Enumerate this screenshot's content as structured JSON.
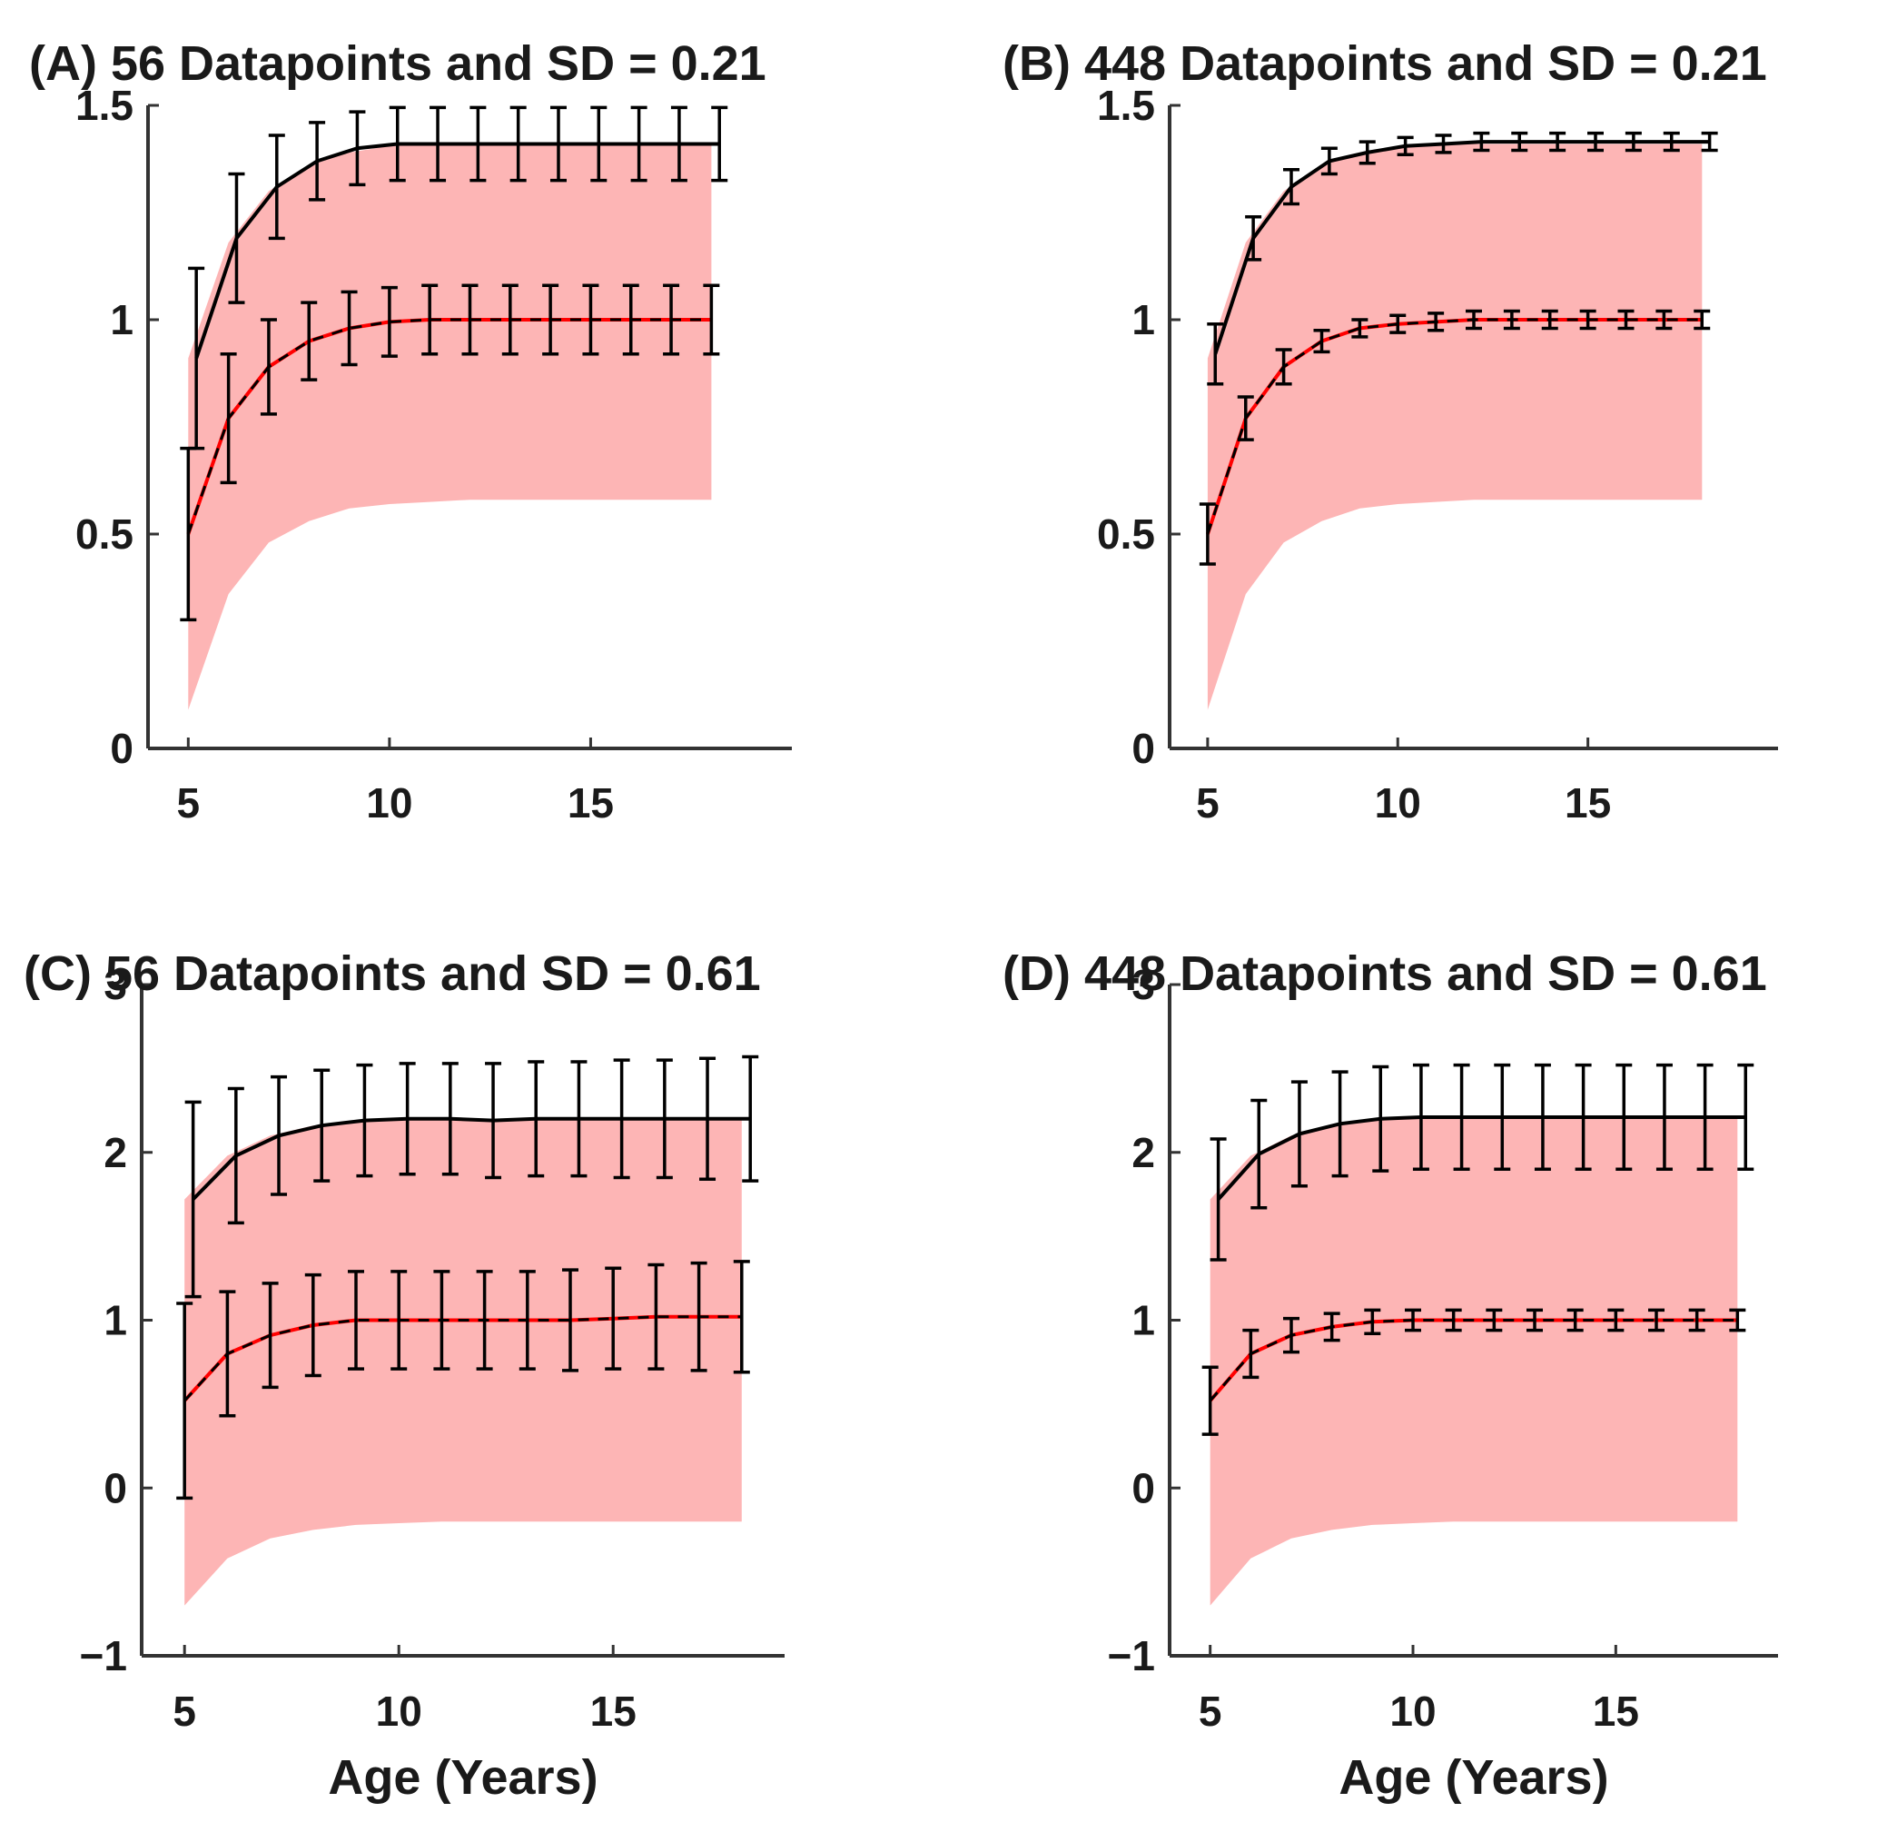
{
  "colors": {
    "band": "#fdb5b5",
    "mean_line": "#ff0000",
    "fit_line": "#000000",
    "axis": "#333333"
  },
  "chart_data": [
    {
      "id": "A",
      "type": "line",
      "title": "(A) 56 Datapoints and SD = 0.21",
      "xlabel": "",
      "ylabel": "",
      "xlim": [
        4,
        20
      ],
      "ylim": [
        0,
        1.5
      ],
      "xticks": [
        5,
        10,
        15
      ],
      "xtick_labels": [
        "5",
        "10",
        "15"
      ],
      "yticks": [
        0,
        0.5,
        1,
        1.5
      ],
      "ytick_labels": [
        "0",
        "0.5",
        "1",
        "1.5"
      ],
      "band": {
        "x": [
          5,
          6,
          7,
          8,
          9,
          10,
          11,
          12,
          13,
          14,
          15,
          16,
          17,
          18
        ],
        "lower": [
          0.09,
          0.36,
          0.48,
          0.53,
          0.56,
          0.57,
          0.575,
          0.58,
          0.58,
          0.58,
          0.58,
          0.58,
          0.58,
          0.58
        ],
        "upper": [
          0.91,
          1.18,
          1.3,
          1.36,
          1.39,
          1.405,
          1.41,
          1.41,
          1.41,
          1.41,
          1.41,
          1.41,
          1.41,
          1.41
        ]
      },
      "series": [
        {
          "name": "upper estimate",
          "x": [
            5.2,
            6.2,
            7.2,
            8.2,
            9.2,
            10.2,
            11.2,
            12.2,
            13.2,
            14.2,
            15.2,
            16.2,
            17.2,
            18.2
          ],
          "values": [
            0.91,
            1.19,
            1.31,
            1.37,
            1.4,
            1.41,
            1.41,
            1.41,
            1.41,
            1.41,
            1.41,
            1.41,
            1.41,
            1.41
          ],
          "err": [
            0.21,
            0.15,
            0.12,
            0.09,
            0.085,
            0.085,
            0.085,
            0.085,
            0.085,
            0.085,
            0.085,
            0.085,
            0.085,
            0.085
          ]
        },
        {
          "name": "mean",
          "x": [
            5,
            6,
            7,
            8,
            9,
            10,
            11,
            12,
            13,
            14,
            15,
            16,
            17,
            18
          ],
          "values": [
            0.5,
            0.77,
            0.89,
            0.95,
            0.98,
            0.995,
            1.0,
            1.0,
            1.0,
            1.0,
            1.0,
            1.0,
            1.0,
            1.0
          ],
          "err": [
            0.2,
            0.15,
            0.11,
            0.09,
            0.085,
            0.08,
            0.08,
            0.08,
            0.08,
            0.08,
            0.08,
            0.08,
            0.08,
            0.08
          ]
        }
      ]
    },
    {
      "id": "B",
      "type": "line",
      "title": "(B) 448 Datapoints and SD = 0.21",
      "xlabel": "",
      "ylabel": "",
      "xlim": [
        4,
        20
      ],
      "ylim": [
        0,
        1.5
      ],
      "xticks": [
        5,
        10,
        15
      ],
      "xtick_labels": [
        "5",
        "10",
        "15"
      ],
      "yticks": [
        0,
        0.5,
        1,
        1.5
      ],
      "ytick_labels": [
        "0",
        "0.5",
        "1",
        "1.5"
      ],
      "band": {
        "x": [
          5,
          6,
          7,
          8,
          9,
          10,
          11,
          12,
          13,
          14,
          15,
          16,
          17,
          18
        ],
        "lower": [
          0.09,
          0.36,
          0.48,
          0.53,
          0.56,
          0.57,
          0.575,
          0.58,
          0.58,
          0.58,
          0.58,
          0.58,
          0.58,
          0.58
        ],
        "upper": [
          0.91,
          1.18,
          1.3,
          1.36,
          1.39,
          1.405,
          1.41,
          1.41,
          1.41,
          1.41,
          1.41,
          1.41,
          1.41,
          1.41
        ]
      },
      "series": [
        {
          "name": "upper estimate",
          "x": [
            5.2,
            6.2,
            7.2,
            8.2,
            9.2,
            10.2,
            11.2,
            12.2,
            13.2,
            14.2,
            15.2,
            16.2,
            17.2,
            18.2
          ],
          "values": [
            0.92,
            1.19,
            1.31,
            1.37,
            1.39,
            1.405,
            1.41,
            1.415,
            1.415,
            1.415,
            1.415,
            1.415,
            1.415,
            1.415
          ],
          "err": [
            0.07,
            0.05,
            0.04,
            0.03,
            0.025,
            0.02,
            0.02,
            0.02,
            0.02,
            0.02,
            0.02,
            0.02,
            0.02,
            0.02
          ]
        },
        {
          "name": "mean",
          "x": [
            5,
            6,
            7,
            8,
            9,
            10,
            11,
            12,
            13,
            14,
            15,
            16,
            17,
            18
          ],
          "values": [
            0.5,
            0.77,
            0.89,
            0.95,
            0.98,
            0.99,
            0.995,
            1.0,
            1.0,
            1.0,
            1.0,
            1.0,
            1.0,
            1.0
          ],
          "err": [
            0.07,
            0.05,
            0.04,
            0.025,
            0.02,
            0.02,
            0.02,
            0.02,
            0.02,
            0.02,
            0.02,
            0.02,
            0.02,
            0.02
          ]
        }
      ]
    },
    {
      "id": "C",
      "type": "line",
      "title": "(C) 56 Datapoints and SD = 0.61",
      "xlabel": "Age (Years)",
      "ylabel": "",
      "xlim": [
        4,
        19
      ],
      "ylim": [
        -1,
        3
      ],
      "xticks": [
        5,
        10,
        15
      ],
      "xtick_labels": [
        "5",
        "10",
        "15"
      ],
      "yticks": [
        -1,
        0,
        1,
        2,
        3
      ],
      "ytick_labels": [
        "−1",
        "0",
        "1",
        "2",
        "3"
      ],
      "band": {
        "x": [
          5,
          6,
          7,
          8,
          9,
          10,
          11,
          12,
          13,
          14,
          15,
          16,
          17,
          18
        ],
        "lower": [
          -0.7,
          -0.42,
          -0.3,
          -0.25,
          -0.22,
          -0.21,
          -0.2,
          -0.2,
          -0.2,
          -0.2,
          -0.2,
          -0.2,
          -0.2,
          -0.2
        ],
        "upper": [
          1.72,
          1.98,
          2.1,
          2.16,
          2.19,
          2.2,
          2.2,
          2.2,
          2.2,
          2.2,
          2.2,
          2.2,
          2.2,
          2.2
        ]
      },
      "series": [
        {
          "name": "upper estimate",
          "x": [
            5.2,
            6.2,
            7.2,
            8.2,
            9.2,
            10.2,
            11.2,
            12.2,
            13.2,
            14.2,
            15.2,
            16.2,
            17.2,
            18.2
          ],
          "values": [
            1.72,
            1.98,
            2.1,
            2.16,
            2.19,
            2.2,
            2.2,
            2.19,
            2.2,
            2.2,
            2.2,
            2.2,
            2.2,
            2.2
          ],
          "err": [
            0.58,
            0.4,
            0.35,
            0.33,
            0.33,
            0.33,
            0.33,
            0.34,
            0.34,
            0.34,
            0.35,
            0.35,
            0.36,
            0.37
          ]
        },
        {
          "name": "mean",
          "x": [
            5,
            6,
            7,
            8,
            9,
            10,
            11,
            12,
            13,
            14,
            15,
            16,
            17,
            18
          ],
          "values": [
            0.52,
            0.8,
            0.91,
            0.97,
            1.0,
            1.0,
            1.0,
            1.0,
            1.0,
            1.0,
            1.01,
            1.02,
            1.02,
            1.02
          ],
          "err": [
            0.58,
            0.37,
            0.31,
            0.3,
            0.29,
            0.29,
            0.29,
            0.29,
            0.29,
            0.3,
            0.3,
            0.31,
            0.32,
            0.33
          ]
        }
      ]
    },
    {
      "id": "D",
      "type": "line",
      "title": "(D) 448 Datapoints and SD = 0.61",
      "xlabel": "Age (Years)",
      "ylabel": "",
      "xlim": [
        4,
        19
      ],
      "ylim": [
        -1,
        3
      ],
      "xticks": [
        5,
        10,
        15
      ],
      "xtick_labels": [
        "5",
        "10",
        "15"
      ],
      "yticks": [
        -1,
        0,
        1,
        2,
        3
      ],
      "ytick_labels": [
        "−1",
        "0",
        "1",
        "2",
        "3"
      ],
      "band": {
        "x": [
          5,
          6,
          7,
          8,
          9,
          10,
          11,
          12,
          13,
          14,
          15,
          16,
          17,
          18
        ],
        "lower": [
          -0.7,
          -0.42,
          -0.3,
          -0.25,
          -0.22,
          -0.21,
          -0.2,
          -0.2,
          -0.2,
          -0.2,
          -0.2,
          -0.2,
          -0.2,
          -0.2
        ],
        "upper": [
          1.72,
          1.98,
          2.1,
          2.16,
          2.19,
          2.2,
          2.2,
          2.2,
          2.2,
          2.2,
          2.2,
          2.2,
          2.2,
          2.2
        ]
      },
      "series": [
        {
          "name": "upper estimate",
          "x": [
            5.2,
            6.2,
            7.2,
            8.2,
            9.2,
            10.2,
            11.2,
            12.2,
            13.2,
            14.2,
            15.2,
            16.2,
            17.2,
            18.2
          ],
          "values": [
            1.72,
            1.99,
            2.11,
            2.17,
            2.2,
            2.21,
            2.21,
            2.21,
            2.21,
            2.21,
            2.21,
            2.21,
            2.21,
            2.21
          ],
          "err": [
            0.36,
            0.32,
            0.31,
            0.31,
            0.31,
            0.31,
            0.31,
            0.31,
            0.31,
            0.31,
            0.31,
            0.31,
            0.31,
            0.31
          ]
        },
        {
          "name": "mean",
          "x": [
            5,
            6,
            7,
            8,
            9,
            10,
            11,
            12,
            13,
            14,
            15,
            16,
            17,
            18
          ],
          "values": [
            0.52,
            0.8,
            0.91,
            0.96,
            0.99,
            1.0,
            1.0,
            1.0,
            1.0,
            1.0,
            1.0,
            1.0,
            1.0,
            1.0
          ],
          "err": [
            0.2,
            0.14,
            0.1,
            0.08,
            0.07,
            0.06,
            0.06,
            0.06,
            0.06,
            0.06,
            0.06,
            0.06,
            0.06,
            0.06
          ]
        }
      ]
    }
  ]
}
